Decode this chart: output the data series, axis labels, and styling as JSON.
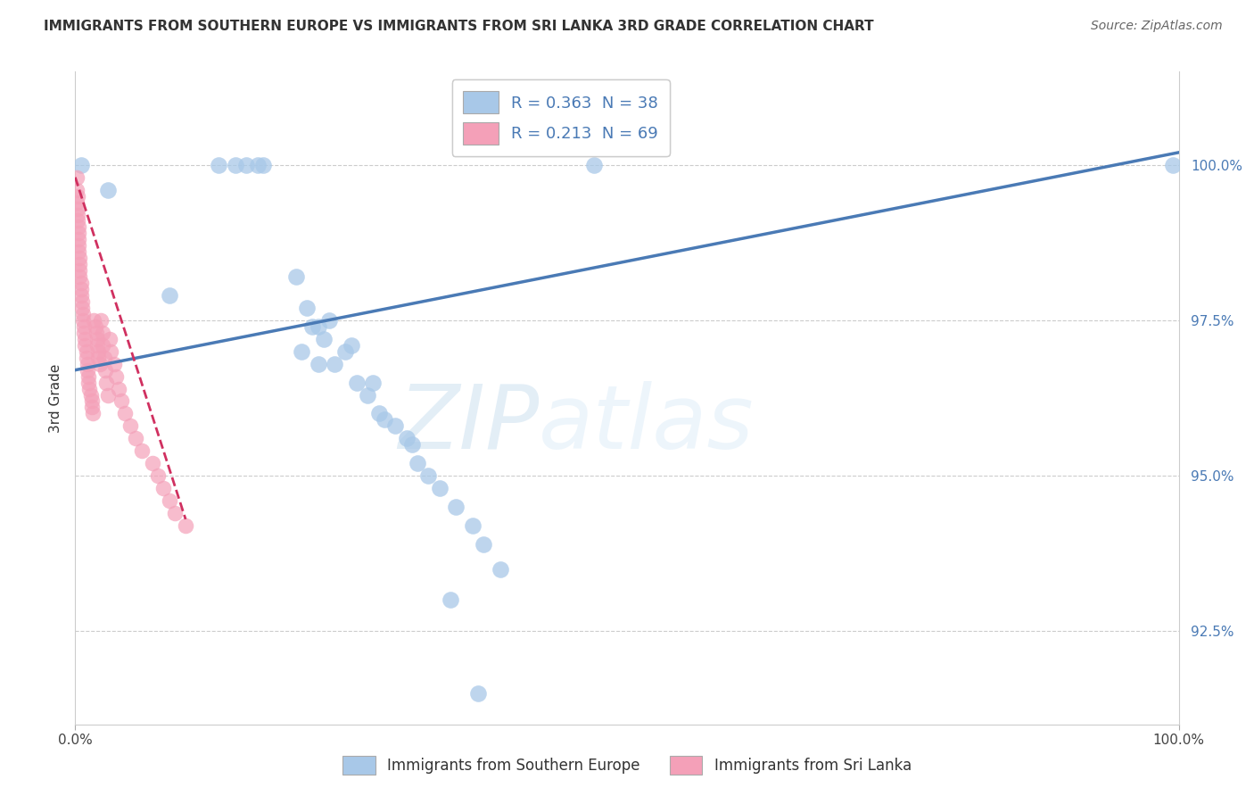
{
  "title": "IMMIGRANTS FROM SOUTHERN EUROPE VS IMMIGRANTS FROM SRI LANKA 3RD GRADE CORRELATION CHART",
  "source": "Source: ZipAtlas.com",
  "ylabel": "3rd Grade",
  "ytick_values": [
    92.5,
    95.0,
    97.5,
    100.0
  ],
  "xlim": [
    0,
    100
  ],
  "ylim": [
    91.0,
    101.5
  ],
  "R_blue": 0.363,
  "N_blue": 38,
  "R_pink": 0.213,
  "N_pink": 69,
  "color_blue": "#a8c8e8",
  "color_pink": "#f4a0b8",
  "trendline_blue": "#4a7ab5",
  "trendline_pink": "#d03060",
  "background": "#ffffff",
  "legend1_label": "Immigrants from Southern Europe",
  "legend2_label": "Immigrants from Sri Lanka",
  "blue_x": [
    0.5,
    3.0,
    8.5,
    13.0,
    14.5,
    15.5,
    16.5,
    17.0,
    20.0,
    21.0,
    21.5,
    22.0,
    22.5,
    23.0,
    23.5,
    24.5,
    25.0,
    25.5,
    26.5,
    27.0,
    27.5,
    28.0,
    29.0,
    30.0,
    30.5,
    31.0,
    32.0,
    33.0,
    34.5,
    36.0,
    37.0,
    38.5,
    20.5,
    22.0,
    34.0,
    36.5,
    47.0,
    99.5
  ],
  "blue_y": [
    100.0,
    99.6,
    97.9,
    100.0,
    100.0,
    100.0,
    100.0,
    100.0,
    98.2,
    97.7,
    97.4,
    97.4,
    97.2,
    97.5,
    96.8,
    97.0,
    97.1,
    96.5,
    96.3,
    96.5,
    96.0,
    95.9,
    95.8,
    95.6,
    95.5,
    95.2,
    95.0,
    94.8,
    94.5,
    94.2,
    93.9,
    93.5,
    97.0,
    96.8,
    93.0,
    91.5,
    100.0,
    100.0
  ],
  "pink_x": [
    0.1,
    0.1,
    0.1,
    0.2,
    0.2,
    0.2,
    0.2,
    0.3,
    0.3,
    0.3,
    0.3,
    0.3,
    0.4,
    0.4,
    0.4,
    0.4,
    0.5,
    0.5,
    0.5,
    0.6,
    0.6,
    0.7,
    0.7,
    0.8,
    0.8,
    0.9,
    0.9,
    1.0,
    1.0,
    1.1,
    1.1,
    1.2,
    1.2,
    1.3,
    1.4,
    1.5,
    1.5,
    1.6,
    1.7,
    1.8,
    1.9,
    2.0,
    2.0,
    2.1,
    2.1,
    2.2,
    2.3,
    2.5,
    2.5,
    2.6,
    2.7,
    2.8,
    3.0,
    3.1,
    3.2,
    3.5,
    3.7,
    3.9,
    4.2,
    4.5,
    5.0,
    5.5,
    6.0,
    7.0,
    7.5,
    8.0,
    8.5,
    9.0,
    10.0
  ],
  "pink_y": [
    99.8,
    99.6,
    99.4,
    99.5,
    99.3,
    99.2,
    99.1,
    99.0,
    98.9,
    98.8,
    98.7,
    98.6,
    98.5,
    98.4,
    98.3,
    98.2,
    98.1,
    98.0,
    97.9,
    97.8,
    97.7,
    97.6,
    97.5,
    97.4,
    97.3,
    97.2,
    97.1,
    97.0,
    96.9,
    96.8,
    96.7,
    96.6,
    96.5,
    96.4,
    96.3,
    96.2,
    96.1,
    96.0,
    97.5,
    97.4,
    97.3,
    97.2,
    97.1,
    97.0,
    96.9,
    96.8,
    97.5,
    97.3,
    97.1,
    96.9,
    96.7,
    96.5,
    96.3,
    97.2,
    97.0,
    96.8,
    96.6,
    96.4,
    96.2,
    96.0,
    95.8,
    95.6,
    95.4,
    95.2,
    95.0,
    94.8,
    94.6,
    94.4,
    94.2
  ],
  "blue_trend_x": [
    0,
    100
  ],
  "blue_trend_y": [
    96.7,
    100.2
  ],
  "pink_trend_x": [
    0.0,
    10.0
  ],
  "pink_trend_y": [
    99.8,
    94.3
  ],
  "watermark_zip": "ZIP",
  "watermark_atlas": "atlas",
  "title_fontsize": 11,
  "source_fontsize": 10,
  "ytick_fontsize": 11,
  "xtick_fontsize": 11,
  "legend_fontsize": 13,
  "ylabel_fontsize": 11
}
